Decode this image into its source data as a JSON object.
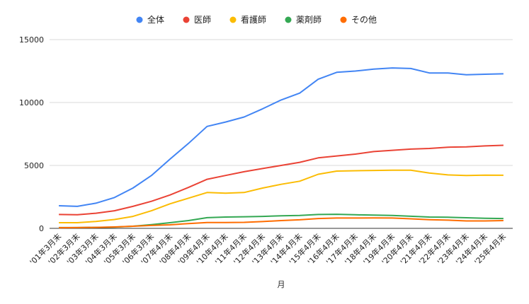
{
  "chart_data": {
    "type": "line",
    "title": "",
    "xlabel": "月",
    "ylabel": "",
    "ylim": [
      0,
      15000
    ],
    "yticks": [
      0,
      5000,
      10000,
      15000
    ],
    "grid": true,
    "legend_position": "top",
    "categories": [
      "'01年3月末",
      "'02年3月末",
      "'03年3月末",
      "'04年3月末",
      "'05年3月末",
      "'06年3月末",
      "'07年4月末",
      "'08年4月末",
      "'09年4月末",
      "'10年4月末",
      "'11年4月末",
      "'12年4月末",
      "'13年4月末",
      "'14年4月末",
      "'15年4月末",
      "'16年4月末",
      "'17年4月末",
      "'18年4月末",
      "'19年4月末",
      "'20年4月末",
      "'21年4月末",
      "'22年4月末",
      "'23年4月末",
      "'24年4月末",
      "'25年4月末"
    ],
    "series": [
      {
        "name": "全体",
        "color": "#4285f4",
        "values": [
          1800,
          1750,
          2000,
          2450,
          3200,
          4200,
          5500,
          6750,
          8100,
          8450,
          8850,
          9500,
          10200,
          10750,
          11850,
          12400,
          12500,
          12650,
          12750,
          12700,
          12350,
          12350,
          12200,
          12250,
          12280
        ]
      },
      {
        "name": "医師",
        "color": "#ea4335",
        "values": [
          1100,
          1080,
          1200,
          1400,
          1750,
          2150,
          2650,
          3250,
          3900,
          4200,
          4500,
          4750,
          5000,
          5250,
          5600,
          5750,
          5900,
          6100,
          6200,
          6300,
          6350,
          6450,
          6480,
          6550,
          6600
        ]
      },
      {
        "name": "看護師",
        "color": "#fbbc04",
        "values": [
          450,
          450,
          550,
          700,
          950,
          1400,
          1950,
          2400,
          2850,
          2800,
          2850,
          3200,
          3500,
          3750,
          4300,
          4550,
          4580,
          4600,
          4620,
          4620,
          4400,
          4250,
          4200,
          4230,
          4220
        ]
      },
      {
        "name": "薬剤師",
        "color": "#34a853",
        "values": [
          60,
          60,
          80,
          100,
          170,
          300,
          450,
          620,
          850,
          900,
          920,
          950,
          1000,
          1020,
          1100,
          1120,
          1080,
          1050,
          1020,
          960,
          900,
          880,
          840,
          800,
          780
        ]
      },
      {
        "name": "その他",
        "color": "#ff6d01",
        "values": [
          50,
          60,
          80,
          110,
          170,
          230,
          280,
          380,
          460,
          460,
          480,
          540,
          620,
          680,
          780,
          820,
          820,
          830,
          820,
          760,
          690,
          650,
          590,
          590,
          620
        ]
      }
    ]
  }
}
